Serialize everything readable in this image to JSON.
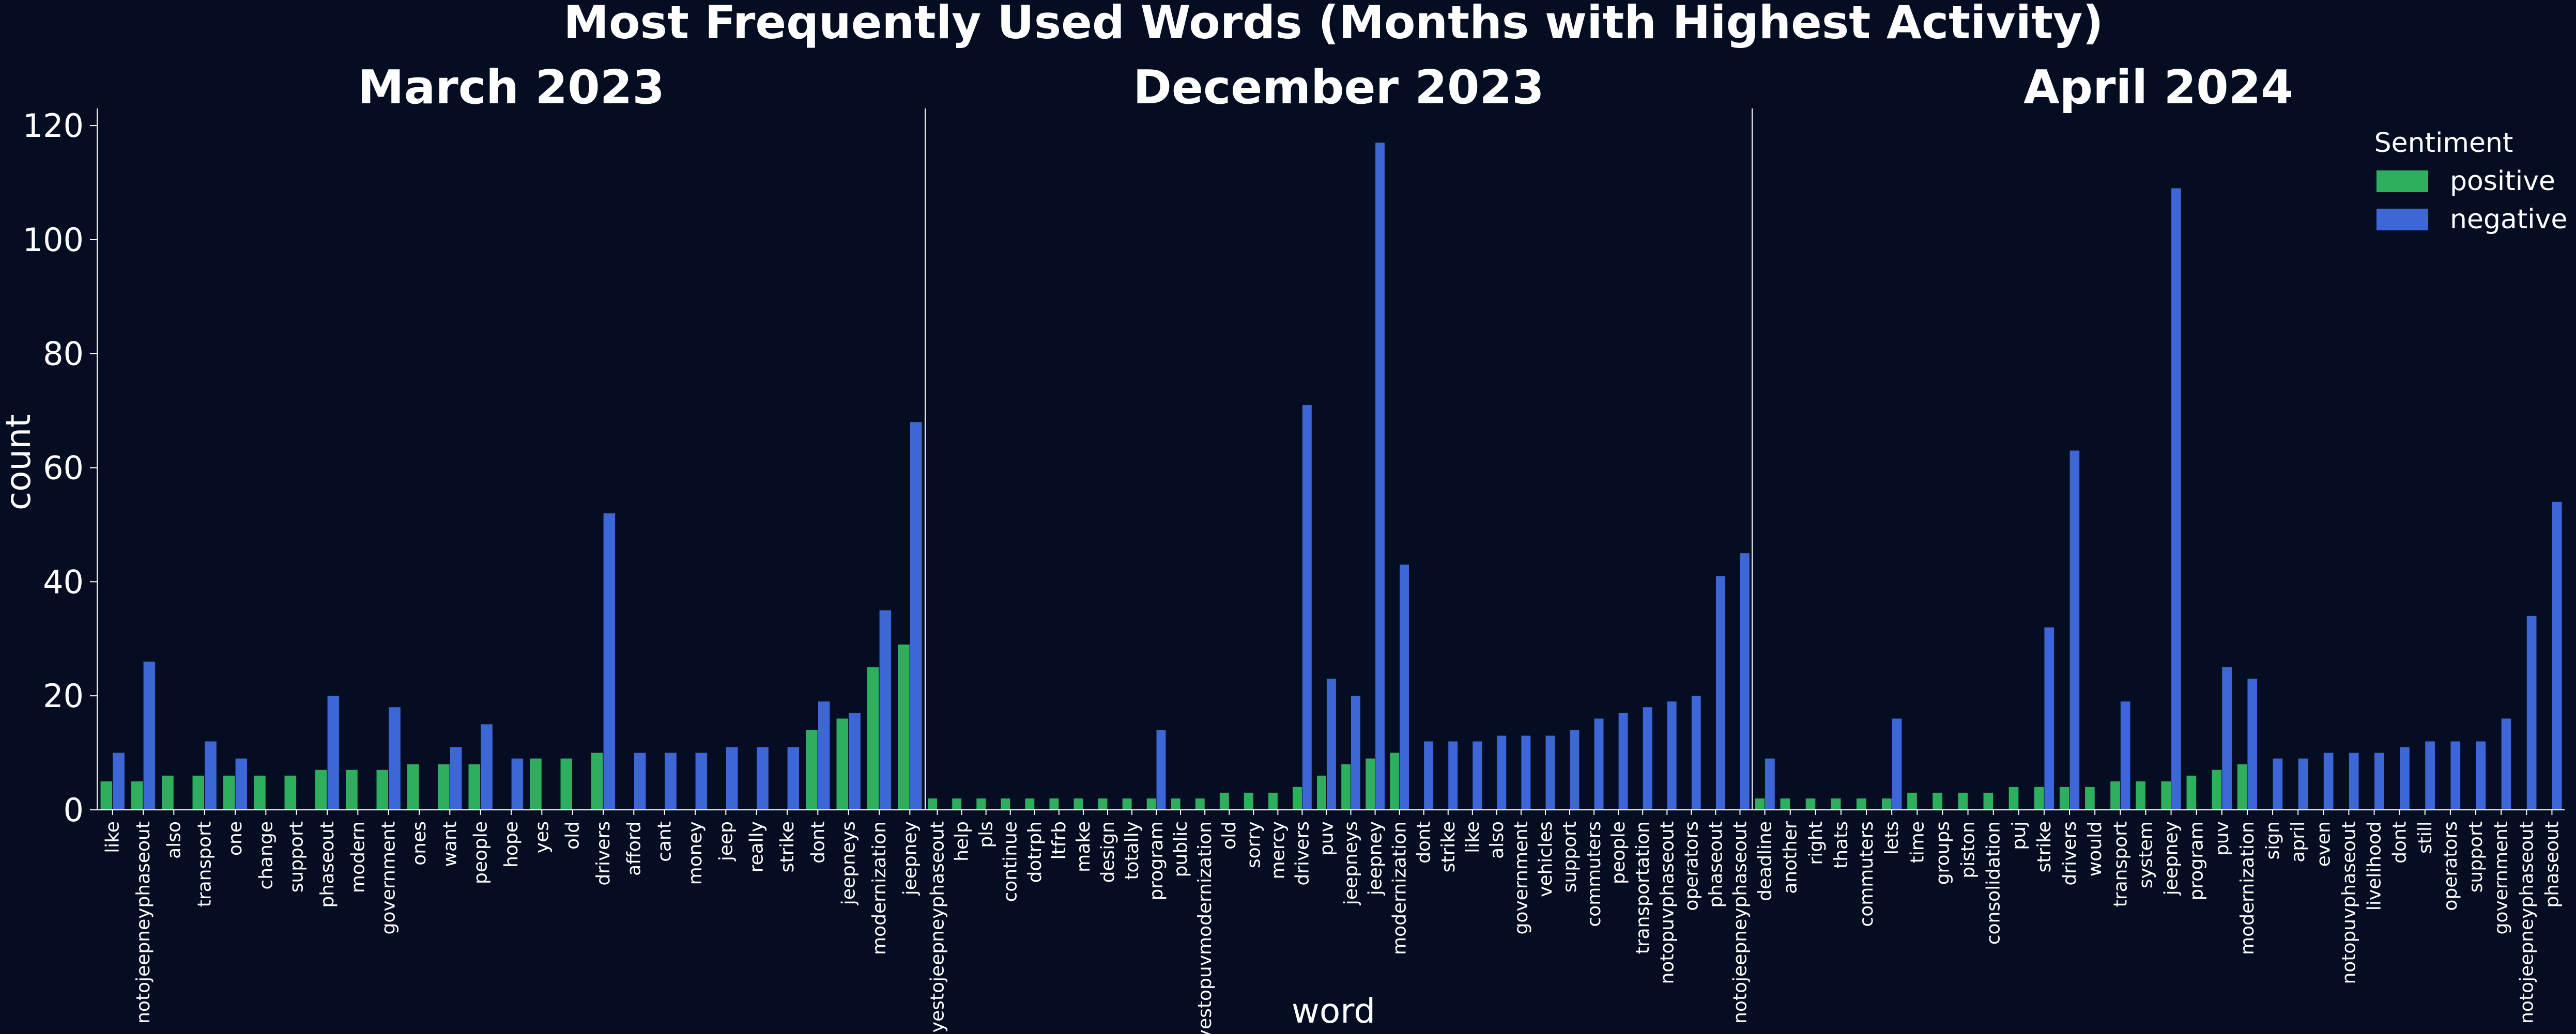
{
  "figure": {
    "title": "Most Frequently Used Words (Months with Highest Activity)",
    "xlabel": "word",
    "ylabel": "count"
  },
  "legend": {
    "title": "Sentiment",
    "entries": [
      {
        "label": "positive",
        "color": "#2eaf5e"
      },
      {
        "label": "negative",
        "color": "#3d67d6"
      }
    ],
    "placement": "top-right"
  },
  "colors": {
    "background": "#050d22",
    "positive": "#2eaf5e",
    "negative": "#3d67d6",
    "axis": "#ffffff"
  },
  "chart_data": [
    {
      "type": "bar",
      "title": "March 2023",
      "ylim": [
        0,
        123
      ],
      "yticks": [
        0,
        20,
        40,
        60,
        80,
        100,
        120
      ],
      "categories": [
        "like",
        "notojeepneyphaseout",
        "also",
        "transport",
        "one",
        "change",
        "support",
        "phaseout",
        "modern",
        "government",
        "ones",
        "want",
        "people",
        "hope",
        "yes",
        "old",
        "drivers",
        "afford",
        "cant",
        "money",
        "jeep",
        "really",
        "strike",
        "dont",
        "jeepneys",
        "modernization",
        "jeepney"
      ],
      "series": [
        {
          "name": "positive",
          "values": [
            5,
            5,
            6,
            6,
            6,
            6,
            6,
            7,
            7,
            7,
            8,
            8,
            8,
            0,
            9,
            9,
            10,
            0,
            0,
            0,
            0,
            0,
            0,
            14,
            16,
            25,
            29
          ]
        },
        {
          "name": "negative",
          "values": [
            10,
            26,
            0,
            12,
            9,
            0,
            0,
            20,
            0,
            18,
            0,
            11,
            15,
            9,
            0,
            0,
            52,
            10,
            10,
            10,
            11,
            11,
            11,
            19,
            17,
            35,
            68
          ]
        }
      ]
    },
    {
      "type": "bar",
      "title": "December 2023",
      "ylim": [
        0,
        123
      ],
      "categories": [
        "yestojeepneyphaseout",
        "help",
        "pls",
        "continue",
        "dotrph",
        "ltfrb",
        "make",
        "design",
        "totally",
        "program",
        "public",
        "yestopuvmodernization",
        "old",
        "sorry",
        "mercy",
        "drivers",
        "puv",
        "jeepneys",
        "jeepney",
        "modernization",
        "dont",
        "strike",
        "like",
        "also",
        "government",
        "vehicles",
        "support",
        "commuters",
        "people",
        "transportation",
        "notopuvphaseout",
        "operators",
        "phaseout",
        "notojeepneyphaseout"
      ],
      "series": [
        {
          "name": "positive",
          "values": [
            2,
            2,
            2,
            2,
            2,
            2,
            2,
            2,
            2,
            2,
            2,
            2,
            3,
            3,
            3,
            4,
            6,
            8,
            9,
            10,
            0,
            0,
            0,
            0,
            0,
            0,
            0,
            0,
            0,
            0,
            0,
            0,
            0,
            0
          ]
        },
        {
          "name": "negative",
          "values": [
            0,
            0,
            0,
            0,
            0,
            0,
            0,
            0,
            0,
            14,
            0,
            0,
            0,
            0,
            0,
            71,
            23,
            20,
            117,
            43,
            12,
            12,
            12,
            13,
            13,
            13,
            14,
            16,
            17,
            18,
            19,
            20,
            41,
            45
          ]
        }
      ]
    },
    {
      "type": "bar",
      "title": "April 2024",
      "ylim": [
        0,
        123
      ],
      "categories": [
        "deadline",
        "another",
        "right",
        "thats",
        "commuters",
        "lets",
        "time",
        "groups",
        "piston",
        "consolidation",
        "puj",
        "strike",
        "drivers",
        "would",
        "transport",
        "system",
        "jeepney",
        "program",
        "puv",
        "modernization",
        "sign",
        "april",
        "even",
        "notopuvphaseout",
        "livelihood",
        "dont",
        "still",
        "operators",
        "support",
        "government",
        "notojeepneyphaseout",
        "phaseout"
      ],
      "series": [
        {
          "name": "positive",
          "values": [
            2,
            2,
            2,
            2,
            2,
            2,
            3,
            3,
            3,
            3,
            4,
            4,
            4,
            4,
            5,
            5,
            5,
            6,
            7,
            8,
            0,
            0,
            0,
            0,
            0,
            0,
            0,
            0,
            0,
            0,
            0,
            0
          ]
        },
        {
          "name": "negative",
          "values": [
            9,
            0,
            0,
            0,
            0,
            16,
            0,
            0,
            0,
            0,
            0,
            32,
            63,
            0,
            19,
            0,
            109,
            0,
            25,
            23,
            9,
            9,
            10,
            10,
            10,
            11,
            12,
            12,
            12,
            16,
            34,
            54
          ]
        }
      ]
    }
  ]
}
